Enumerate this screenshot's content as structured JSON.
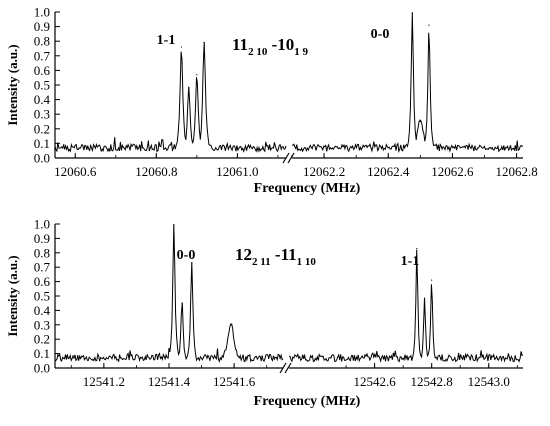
{
  "chart_data": [
    {
      "type": "line",
      "xlabel": "Frequency (MHz)",
      "ylabel": "Intensity (a.u.)",
      "ylim": [
        0,
        1.0
      ],
      "yticks": [
        "0.0",
        "0.1",
        "0.2",
        "0.3",
        "0.4",
        "0.5",
        "0.6",
        "0.7",
        "0.8",
        "0.9",
        "1.0"
      ],
      "axis_break": "between 12061.1 and 12062.1 MHz",
      "segments": [
        {
          "xlim": [
            12060.55,
            12061.12
          ],
          "xticks": [
            "12060.6",
            "12060.8",
            "12061.0"
          ],
          "peaks": [
            {
              "x": 12060.862,
              "y": 0.76
            },
            {
              "x": 12060.88,
              "y": 0.48
            },
            {
              "x": 12060.9,
              "y": 0.57
            },
            {
              "x": 12060.918,
              "y": 0.79
            }
          ]
        },
        {
          "xlim": [
            12062.1,
            12062.82
          ],
          "xticks": [
            "12062.2",
            "12062.4",
            "12062.6",
            "12062.8"
          ],
          "peaks": [
            {
              "x": 12062.475,
              "y": 0.99
            },
            {
              "x": 12062.5,
              "y": 0.25
            },
            {
              "x": 12062.527,
              "y": 0.91
            }
          ]
        }
      ],
      "annotations": [
        {
          "text": "1-1",
          "x": 12060.89,
          "y": 0.81
        },
        {
          "text": "0-0",
          "x": 12062.39,
          "y": 0.81
        }
      ],
      "transition": {
        "main": "11",
        "upper_sub": "2 10",
        "mid": " -10",
        "lower_sub": "1 9"
      }
    },
    {
      "type": "line",
      "xlabel": "Frequency (MHz)",
      "ylabel": "Intensity (a.u.)",
      "ylim": [
        0,
        1.0
      ],
      "yticks": [
        "0.0",
        "0.1",
        "0.2",
        "0.3",
        "0.4",
        "0.5",
        "0.6",
        "0.7",
        "0.8",
        "0.9",
        "1.0"
      ],
      "axis_break": "between 12541.75 and 12542.3 MHz",
      "segments": [
        {
          "xlim": [
            12541.05,
            12541.75
          ],
          "xticks": [
            "12541.2",
            "12541.4",
            "12541.6"
          ],
          "peaks": [
            {
              "x": 12541.415,
              "y": 0.99
            },
            {
              "x": 12541.44,
              "y": 0.45
            },
            {
              "x": 12541.47,
              "y": 0.73
            },
            {
              "x": 12541.59,
              "y": 0.3
            }
          ]
        },
        {
          "xlim": [
            12542.3,
            12543.12
          ],
          "xticks": [
            "12542.6",
            "12542.8",
            "12543.0"
          ],
          "peaks": [
            {
              "x": 12542.748,
              "y": 0.83
            },
            {
              "x": 12542.775,
              "y": 0.48
            },
            {
              "x": 12542.8,
              "y": 0.61
            }
          ]
        }
      ],
      "annotations": [
        {
          "text": "0-0",
          "x": 12541.48,
          "y": 0.78
        },
        {
          "text": "1-1",
          "x": 12542.83,
          "y": 0.67
        }
      ],
      "transition": {
        "main": "12",
        "upper_sub": "2 11",
        "mid": " -11",
        "lower_sub": "1 10"
      }
    }
  ]
}
